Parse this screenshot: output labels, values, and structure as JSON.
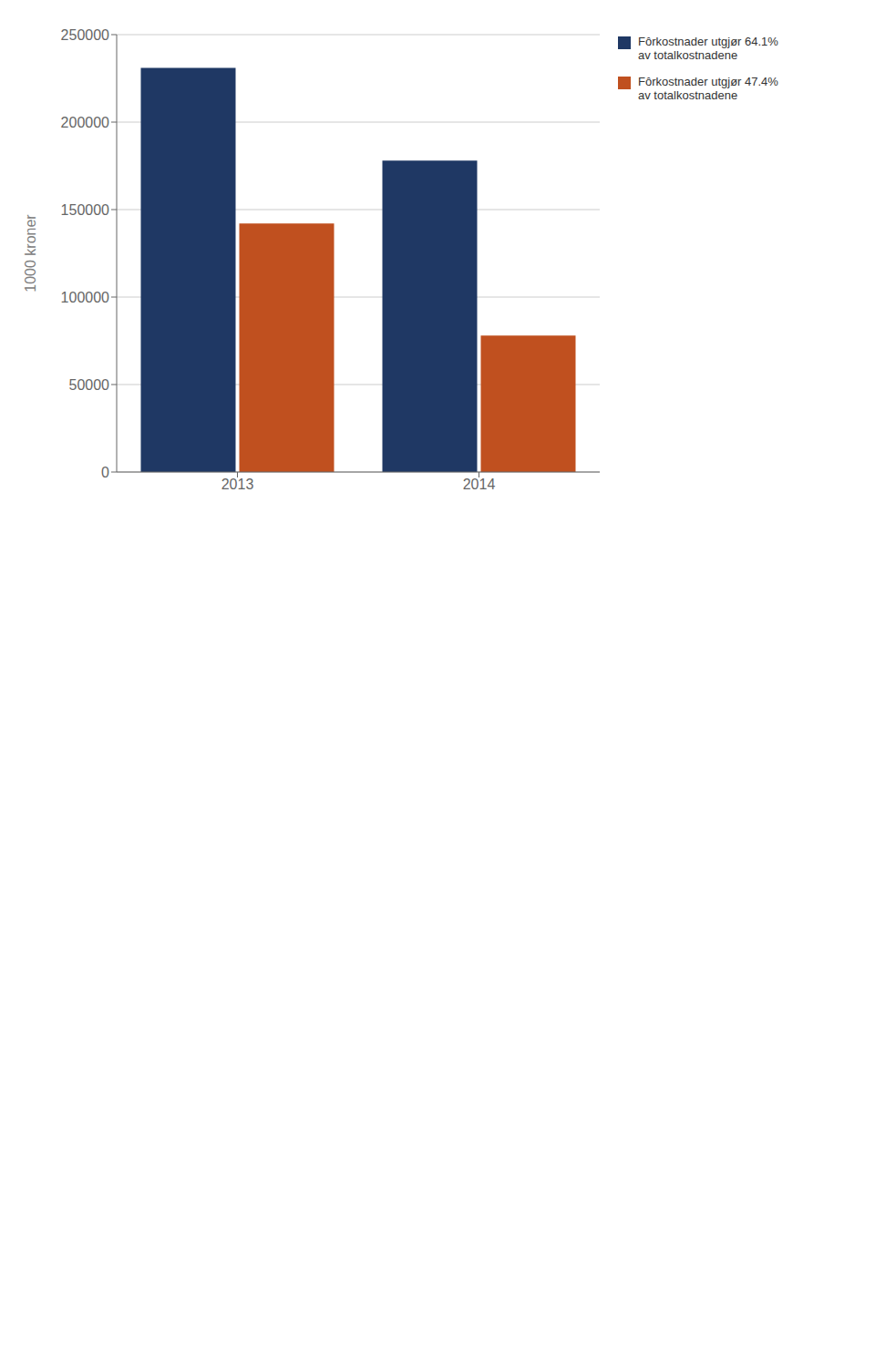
{
  "chart_data": {
    "type": "bar",
    "categories": [
      "2013",
      "2014"
    ],
    "series": [
      {
        "name": "Fôrkostnader utgjør 64.1%\nav totalkostnadene",
        "color": "#1F3864",
        "values": [
          231000,
          178000
        ]
      },
      {
        "name": "Fôrkostnader utgjør 47.4%\nav totalkostnadene",
        "color": "#C0501F",
        "values": [
          142000,
          78000
        ]
      }
    ],
    "ylabel": "1000 kroner",
    "ylim": [
      0,
      250000
    ],
    "yticks": [
      0,
      50000,
      100000,
      150000,
      200000,
      250000
    ],
    "grid": true,
    "legend": "right"
  }
}
